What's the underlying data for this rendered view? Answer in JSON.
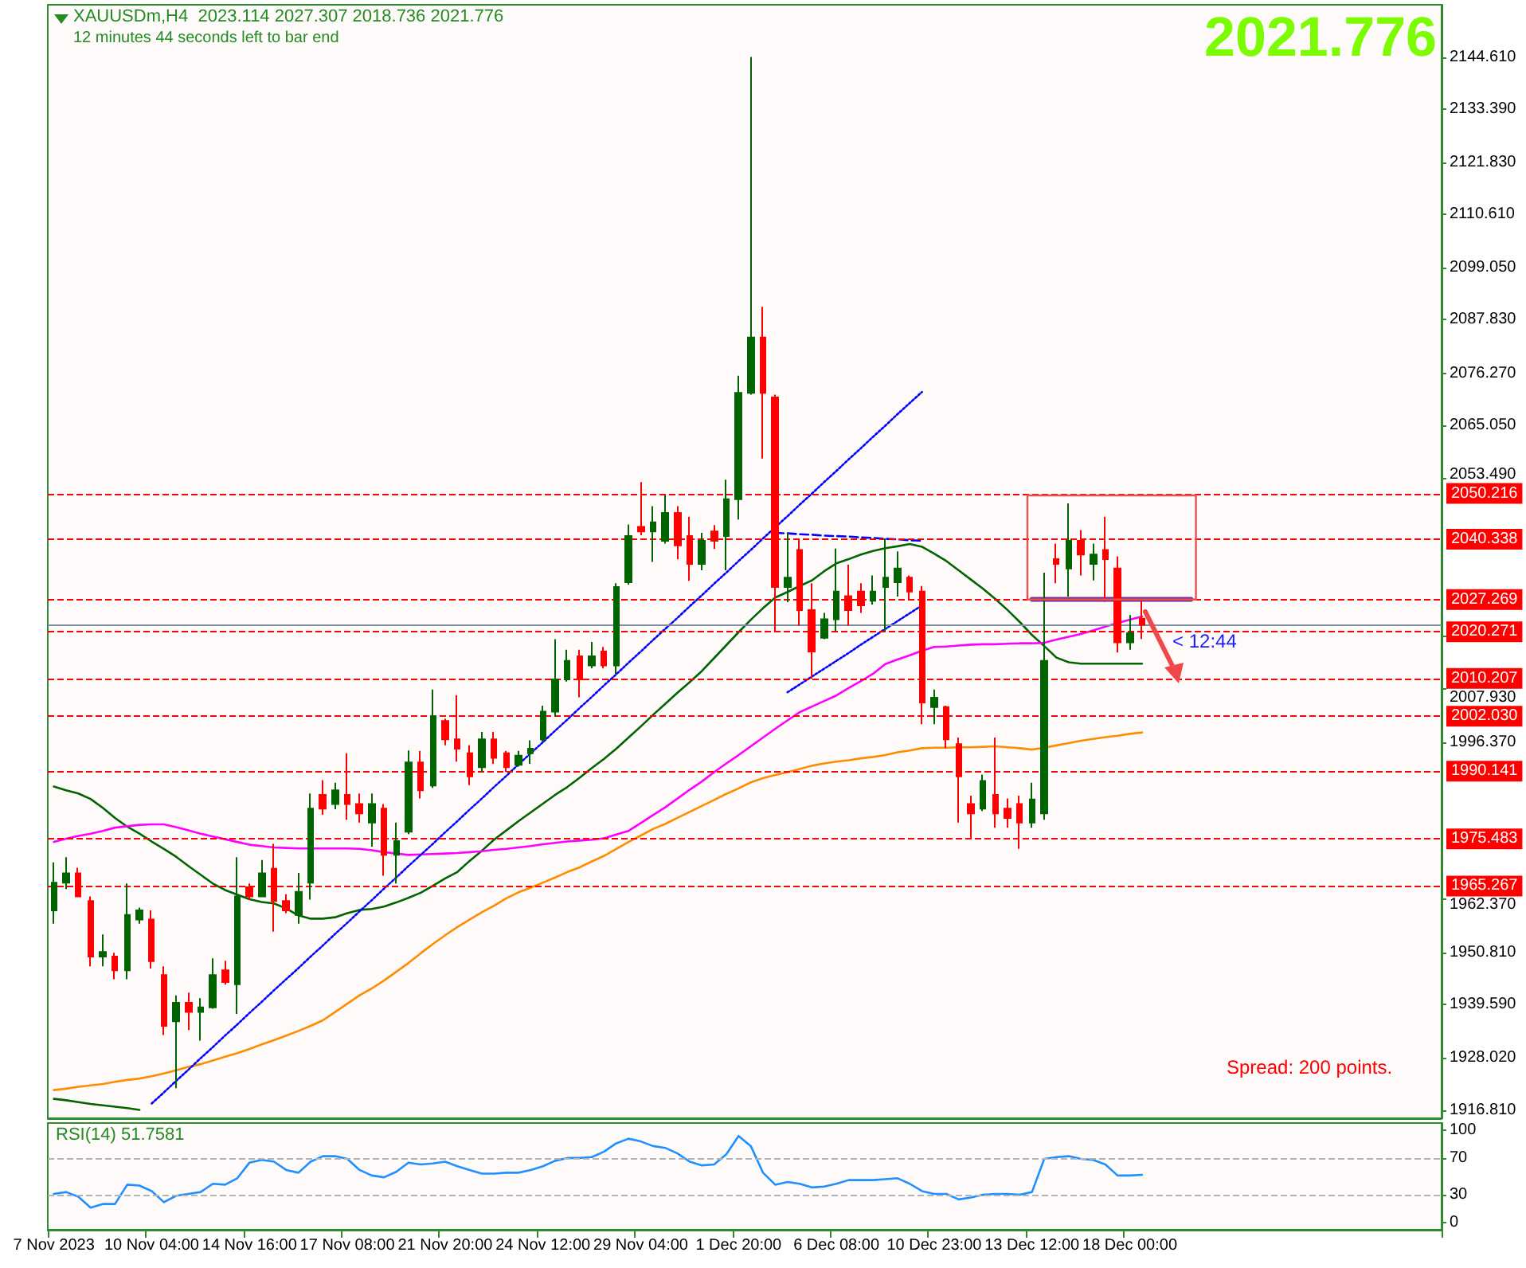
{
  "chart_data": [
    {
      "type": "candlestick",
      "title": "XAUUSDm,H4  2023.114 2027.307 2018.736 2021.776",
      "subtitle": "12 minutes 44 seconds left to bar end",
      "categories": [
        null,
        null,
        null,
        null,
        null,
        null,
        null,
        null,
        null,
        null,
        null,
        null,
        null,
        null,
        null,
        null,
        null,
        null,
        null,
        null,
        null,
        null,
        null,
        null,
        null,
        null,
        null,
        null,
        null,
        null,
        null,
        null,
        null,
        null,
        null,
        null,
        null,
        null,
        null,
        null,
        null,
        null,
        null,
        null,
        null,
        null,
        null,
        null,
        null,
        null,
        null,
        null,
        null,
        null,
        null,
        null,
        null,
        null,
        null,
        null,
        null,
        null,
        null,
        null,
        null,
        null,
        null,
        null,
        null,
        null,
        null,
        null,
        null,
        null,
        null,
        null,
        null,
        null,
        null,
        null,
        null,
        null,
        null,
        null,
        null,
        null,
        null,
        null,
        null,
        null,
        null,
        null,
        null,
        null,
        null,
        null,
        null,
        null,
        null,
        null,
        null,
        null,
        null,
        null,
        null,
        null,
        null,
        null,
        null,
        null,
        null,
        null,
        null,
        null
      ],
      "ohlc": [
        [
          1960,
          1970.4,
          1957.1,
          1966
        ],
        [
          1966,
          1971.5,
          1964.6,
          1968
        ],
        [
          1968,
          1969.2,
          1962.9,
          1963
        ],
        [
          1962,
          1963,
          1947.9,
          1950
        ],
        [
          1950,
          1954.8,
          1947.9,
          1951
        ],
        [
          1950,
          1950.8,
          1945.1,
          1947
        ],
        [
          1947,
          1965.8,
          1945.1,
          1959
        ],
        [
          1958,
          1960.6,
          1957.1,
          1960
        ],
        [
          1958,
          1960,
          1947.4,
          1949
        ],
        [
          1946,
          1947.9,
          1933,
          1935
        ],
        [
          1936,
          1941.6,
          1921.5,
          1940
        ],
        [
          1940,
          1942.2,
          1934.1,
          1938
        ],
        [
          1938,
          1941,
          1931.8,
          1939
        ],
        [
          1939,
          1949.6,
          1938.7,
          1946
        ],
        [
          1947,
          1949.1,
          1943.9,
          1944.5
        ],
        [
          1944,
          1971.5,
          1937.6,
          1963
        ],
        [
          1965,
          1965.8,
          1962.3,
          1963
        ],
        [
          1963,
          1970.9,
          1962.9,
          1968
        ],
        [
          1969,
          1974.4,
          1955.4,
          1962
        ],
        [
          1962,
          1963.5,
          1959.4,
          1960
        ],
        [
          1959,
          1968.1,
          1957.1,
          1964
        ],
        [
          1966,
          1985.3,
          1962.3,
          1982
        ],
        [
          1985,
          1988.2,
          1980.7,
          1982
        ],
        [
          1983,
          1987.6,
          1981.9,
          1986
        ],
        [
          1985,
          1994,
          1979.6,
          1983
        ],
        [
          1983,
          1985.3,
          1979,
          1981
        ],
        [
          1979,
          1985.3,
          1973.8,
          1983
        ],
        [
          1982,
          1983,
          1967.5,
          1972
        ],
        [
          1972,
          1979,
          1965.8,
          1975
        ],
        [
          1977,
          1994.6,
          1976.5,
          1992
        ],
        [
          1992,
          1994.5,
          1984.2,
          1986
        ],
        [
          1987,
          2007.8,
          1986.5,
          2002
        ],
        [
          2001,
          2001.5,
          1995.7,
          1997
        ],
        [
          1997,
          2006.6,
          1992.2,
          1995
        ],
        [
          1994,
          1995.7,
          1987.1,
          1989
        ],
        [
          1991,
          1998.6,
          1990,
          1997
        ],
        [
          1997,
          1998.6,
          1991.7,
          1993
        ],
        [
          1994,
          1994.5,
          1990,
          1991
        ],
        [
          1991.5,
          1994.5,
          1991.1,
          1993.5
        ],
        [
          1994,
          1996.8,
          1991.7,
          1995
        ],
        [
          1997,
          2004.3,
          1996.5,
          2003
        ],
        [
          2003,
          2018.7,
          2002,
          2010
        ],
        [
          2010,
          2016.4,
          2009.5,
          2014
        ],
        [
          2015,
          2016.4,
          2006.1,
          2010
        ],
        [
          2013,
          2018.1,
          2012.4,
          2015
        ],
        [
          2016,
          2017,
          2012.4,
          2013
        ],
        [
          2013,
          2030.8,
          2011.2,
          2030
        ],
        [
          2031,
          2043.5,
          2030.5,
          2041
        ],
        [
          2043,
          2052.7,
          2041.2,
          2042
        ],
        [
          2042,
          2047.5,
          2035.4,
          2044
        ],
        [
          2040,
          2049.8,
          2039.4,
          2046
        ],
        [
          2046,
          2047.5,
          2036,
          2039
        ],
        [
          2041,
          2045.2,
          2031.3,
          2035
        ],
        [
          2035,
          2041.7,
          2033.6,
          2040
        ],
        [
          2042,
          2043.4,
          2038.2,
          2040
        ],
        [
          2041,
          2053.2,
          2033.6,
          2049
        ],
        [
          2049,
          2075.7,
          2044.6,
          2072
        ],
        [
          2072,
          2144.7,
          2071.6,
          2084
        ],
        [
          2084,
          2090.6,
          2057.8,
          2072
        ],
        [
          2071,
          2071.6,
          2020.4,
          2030
        ],
        [
          2030,
          2041.7,
          2026.7,
          2032
        ],
        [
          2038,
          2040.5,
          2021.6,
          2025
        ],
        [
          2025,
          2030.8,
          2010.1,
          2016
        ],
        [
          2019,
          2024.4,
          2018.7,
          2023
        ],
        [
          2023,
          2038.3,
          2020.4,
          2029
        ],
        [
          2028,
          2034.8,
          2021.6,
          2025
        ],
        [
          2029,
          2030.8,
          2024.4,
          2026
        ],
        [
          2027,
          2032.5,
          2026.2,
          2029
        ],
        [
          2030,
          2040.5,
          2020.4,
          2032
        ],
        [
          2031,
          2037.7,
          2027.9,
          2034
        ],
        [
          2032,
          2032.5,
          2027.3,
          2029
        ],
        [
          2029,
          2030.2,
          2000.3,
          2005
        ],
        [
          2004,
          2007.8,
          2000.3,
          2006
        ],
        [
          2004,
          2004.3,
          1995.1,
          1997
        ],
        [
          1996,
          1997.4,
          1979,
          1989
        ],
        [
          1983,
          1984.8,
          1975.6,
          1981
        ],
        [
          1982,
          1989.4,
          1981.5,
          1988
        ],
        [
          1985,
          1997.4,
          1977.9,
          1981
        ],
        [
          1982,
          1984.2,
          1977.9,
          1980
        ],
        [
          1983,
          1984.8,
          1973.3,
          1979
        ],
        [
          1979,
          1987.6,
          1977.9,
          1984
        ],
        [
          1981,
          2033.1,
          1979.6,
          2014
        ],
        [
          2036,
          2039.4,
          2030.8,
          2035
        ],
        [
          2034,
          2048.1,
          2027.9,
          2040
        ],
        [
          2040,
          2042.3,
          2032.5,
          2037
        ],
        [
          2035,
          2039.4,
          2031.4,
          2037
        ],
        [
          2038,
          2045.2,
          2026.8,
          2036
        ],
        [
          2034,
          2036.6,
          2015.8,
          2018
        ],
        [
          2018,
          2023.9,
          2016.4,
          2020
        ],
        [
          2023.114,
          2027.307,
          2018.736,
          2021.776
        ],
        null,
        null,
        null,
        null,
        null,
        null,
        null,
        null,
        null,
        null,
        null,
        null,
        null,
        null,
        null,
        null,
        null,
        null,
        null,
        null,
        null,
        null,
        null,
        null
      ],
      "colors": [
        "#006400",
        "#006400",
        "#ff0000",
        "#ff0000",
        "#006400",
        "#ff0000",
        "#006400",
        "#006400",
        "#ff0000",
        "#ff0000",
        "#006400",
        "#ff0000",
        "#006400",
        "#006400",
        "#ff0000",
        "#006400",
        "#ff0000",
        "#006400",
        "#ff0000",
        "#ff0000",
        "#006400",
        "#006400",
        "#ff0000",
        "#006400",
        "#ff0000",
        "#ff0000",
        "#006400",
        "#ff0000",
        "#006400",
        "#006400",
        "#ff0000",
        "#006400",
        "#ff0000",
        "#ff0000",
        "#ff0000",
        "#006400",
        "#ff0000",
        "#ff0000",
        "#006400",
        "#006400",
        "#006400",
        "#006400",
        "#006400",
        "#ff0000",
        "#006400",
        "#ff0000",
        "#006400",
        "#006400",
        "#ff0000",
        "#006400",
        "#006400",
        "#ff0000",
        "#ff0000",
        "#006400",
        "#ff0000",
        "#006400",
        "#006400",
        "#006400",
        "#ff0000",
        "#ff0000",
        "#006400",
        "#ff0000",
        "#ff0000",
        "#006400",
        "#006400",
        "#ff0000",
        "#ff0000",
        "#006400",
        "#006400",
        "#006400",
        "#ff0000",
        "#ff0000",
        "#006400",
        "#ff0000",
        "#ff0000",
        "#ff0000",
        "#006400",
        "#ff0000",
        "#ff0000",
        "#ff0000",
        "#006400",
        "#006400",
        "#ff0000",
        "#006400",
        "#ff0000",
        "#006400",
        "#ff0000",
        "#ff0000",
        "#006400",
        "#ff0000",
        null,
        null,
        null,
        null,
        null,
        null,
        null,
        null,
        null,
        null,
        null,
        null,
        null,
        null,
        null,
        null,
        null,
        null,
        null,
        null,
        null,
        null,
        null,
        null
      ],
      "series": [
        {
          "type": "line",
          "color": "#006400",
          "values": [
            1986.8,
            1986.0,
            1985.3,
            1984.1,
            1982.2,
            1980.0,
            1978.1,
            1976.6,
            1974.9,
            1973.3,
            1971.6,
            1969.6,
            1967.7,
            1965.8,
            1964.4,
            1963.4,
            1962.4,
            1961.8,
            1961.5,
            1960.4,
            1958.9,
            1958.2,
            1958.2,
            1958.5,
            1959.4,
            1960.1,
            1960.3,
            1960.8,
            1961.7,
            1962.7,
            1963.8,
            1965.3,
            1966.9,
            1968.3,
            1970.7,
            1972.9,
            1975.3,
            1977.3,
            1979.3,
            1981.2,
            1983.1,
            1985.0,
            1986.7,
            1988.7,
            1990.8,
            1992.8,
            1995.0,
            1997.4,
            1999.8,
            2002.3,
            2004.7,
            2007.1,
            2009.4,
            2011.8,
            2014.6,
            2017.4,
            2020.2,
            2022.9,
            2025.4,
            2027.7,
            2028.9,
            2030.2,
            2031.4,
            2033.4,
            2035.1,
            2036.0,
            2037.0,
            2037.8,
            2038.4,
            2038.8,
            2039.3,
            2038.7,
            2037.2,
            2035.6,
            2033.6,
            2031.6,
            2029.6,
            2027.4,
            2025.0,
            2022.4,
            2019.6,
            2017.2,
            2014.7,
            2013.7,
            2013.4,
            2013.4,
            2013.4,
            2013.4,
            2013.4,
            2013.4,
            null,
            null,
            null,
            null,
            null,
            null,
            null,
            null,
            null,
            null,
            null,
            null,
            null,
            null,
            null,
            null,
            null,
            null,
            null,
            null,
            null,
            null,
            null,
            null
          ]
        },
        {
          "type": "line",
          "color": "#ff00ff",
          "values": [
            1974.8,
            1975.5,
            1976.1,
            1976.6,
            1977.2,
            1977.9,
            1978.2,
            1978.5,
            1978.6,
            1978.6,
            1978.0,
            1977.3,
            1976.6,
            1976.0,
            1975.4,
            1974.8,
            1974.2,
            1973.9,
            1973.6,
            1973.5,
            1973.4,
            1973.4,
            1973.4,
            1973.4,
            1973.4,
            1973.3,
            1973.0,
            1972.6,
            1972.3,
            1972.0,
            1972.1,
            1972.2,
            1972.3,
            1972.4,
            1972.6,
            1972.8,
            1973.1,
            1973.3,
            1973.6,
            1973.9,
            1974.3,
            1974.6,
            1974.9,
            1975.1,
            1975.3,
            1975.6,
            1976.4,
            1977.2,
            1978.9,
            1980.6,
            1982.3,
            1984.2,
            1986.1,
            1987.9,
            1989.9,
            1991.8,
            1993.6,
            1995.5,
            1997.4,
            1999.3,
            2001.1,
            2002.9,
            2004.1,
            2005.3,
            2006.5,
            2008.1,
            2009.6,
            2011.2,
            2013.3,
            2014.3,
            2015.2,
            2016.2,
            2017.0,
            2017.1,
            2017.3,
            2017.5,
            2017.6,
            2017.6,
            2017.7,
            2017.8,
            2017.8,
            2017.9,
            2018.6,
            2019.2,
            2019.8,
            2020.6,
            2021.4,
            2022.2,
            2022.9,
            2023.6,
            null,
            null,
            null,
            null,
            null,
            null,
            null,
            null,
            null,
            null,
            null,
            null,
            null,
            null,
            null,
            null,
            null,
            null,
            null,
            null,
            null,
            null,
            null,
            null
          ]
        },
        {
          "type": "line",
          "color": "#ff8c00",
          "values": [
            1921.1,
            1921.4,
            1921.8,
            1922.1,
            1922.4,
            1922.9,
            1923.3,
            1923.6,
            1924.1,
            1924.7,
            1925.4,
            1926.1,
            1926.7,
            1927.5,
            1928.3,
            1929.1,
            1930.0,
            1931.0,
            1931.9,
            1932.9,
            1933.9,
            1935.0,
            1936.2,
            1938.0,
            1939.8,
            1941.6,
            1943.1,
            1944.8,
            1946.7,
            1948.6,
            1950.7,
            1952.7,
            1954.6,
            1956.4,
            1958.0,
            1959.6,
            1961.0,
            1962.6,
            1963.9,
            1964.9,
            1966.0,
            1967.1,
            1968.3,
            1969.3,
            1970.6,
            1971.8,
            1973.3,
            1974.8,
            1976.2,
            1977.6,
            1978.7,
            1980.0,
            1981.3,
            1982.6,
            1983.9,
            1985.2,
            1986.4,
            1987.7,
            1988.6,
            1989.3,
            1989.9,
            1990.6,
            1991.3,
            1991.8,
            1992.2,
            1992.5,
            1992.9,
            1993.2,
            1993.6,
            1994.2,
            1994.6,
            1995.1,
            1995.2,
            1995.2,
            1995.3,
            1995.3,
            1995.4,
            1995.5,
            1995.3,
            1995.1,
            1994.8,
            1995.2,
            1995.7,
            1996.2,
            1996.7,
            1997.1,
            1997.5,
            1997.8,
            1998.2,
            1998.5,
            null,
            null,
            null,
            null,
            null,
            null,
            null,
            null,
            null,
            null,
            null,
            null,
            null,
            null,
            null,
            null,
            null,
            null,
            null,
            null,
            null,
            null,
            null,
            null
          ]
        },
        {
          "type": "line",
          "color": "#006400",
          "values": [
            1919.2,
            1918.9,
            1918.5,
            1918.1,
            1917.8,
            1917.5,
            1917.2,
            1916.8,
            null,
            null,
            null,
            null,
            null,
            null,
            null,
            null,
            null,
            null,
            null,
            null,
            null,
            null,
            null,
            null,
            null,
            null,
            null,
            null,
            null,
            null,
            null,
            null,
            null,
            null,
            null,
            null,
            null,
            null,
            null,
            null,
            null,
            null,
            null,
            null,
            null,
            null,
            null,
            null,
            null,
            null,
            null,
            null,
            null,
            null,
            null,
            null,
            null,
            null,
            null,
            null,
            null,
            null,
            null,
            null,
            null,
            null,
            null,
            null,
            null,
            null,
            null,
            null,
            null,
            null,
            null,
            null,
            null,
            null,
            null,
            null,
            null,
            null,
            null,
            null,
            null,
            null,
            null,
            null,
            null,
            null,
            null,
            null,
            null,
            null,
            null,
            null,
            null,
            null,
            null,
            null,
            null,
            null,
            null,
            null,
            null,
            null,
            null,
            null,
            null,
            null,
            null,
            null,
            null,
            null
          ]
        },
        {
          "type": "line",
          "color": "#0000ff",
          "line_style": "dotted",
          "values": [
            null,
            null,
            null,
            null,
            null,
            null,
            null,
            null,
            1918.2,
            1920.6,
            1923.1,
            1925.5,
            1928.0,
            1930.4,
            1932.9,
            1935.3,
            1937.8,
            1940.2,
            1942.7,
            1945.1,
            1947.5,
            1950.0,
            1952.4,
            1954.9,
            1957.3,
            1959.8,
            1962.2,
            1964.7,
            1967.1,
            1969.6,
            1972.0,
            1974.4,
            1976.9,
            1979.3,
            1981.8,
            1984.2,
            1986.7,
            1989.1,
            1991.6,
            1994.0,
            1996.4,
            1998.9,
            2001.3,
            2003.8,
            2006.2,
            2008.7,
            2011.1,
            2013.6,
            2016.0,
            2018.5,
            2020.9,
            2023.3,
            2025.8,
            2028.2,
            2030.7,
            2033.1,
            2035.6,
            2038.0,
            2040.5,
            2042.9,
            2045.3,
            2047.8,
            2050.2,
            2052.7,
            2055.1,
            2057.6,
            2060.0,
            2062.5,
            2064.9,
            2067.4,
            2069.8,
            2072.2,
            null,
            null,
            null,
            null,
            null,
            null,
            null,
            null,
            null,
            null,
            null,
            null,
            null,
            null,
            null,
            null,
            null,
            null,
            null,
            null,
            null,
            null,
            null,
            null,
            null,
            null,
            null,
            null,
            null,
            null,
            null,
            null,
            null,
            null,
            null,
            null,
            null,
            null,
            null,
            null,
            null,
            null
          ]
        },
        {
          "type": "line",
          "color": "#0000ff",
          "line_style": "dotted",
          "values": [
            null,
            null,
            null,
            null,
            null,
            null,
            null,
            null,
            null,
            null,
            null,
            null,
            null,
            null,
            null,
            null,
            null,
            null,
            null,
            null,
            null,
            null,
            null,
            null,
            null,
            null,
            null,
            null,
            null,
            null,
            null,
            null,
            null,
            null,
            null,
            null,
            null,
            null,
            null,
            null,
            null,
            null,
            null,
            null,
            null,
            null,
            null,
            null,
            null,
            null,
            null,
            null,
            null,
            null,
            null,
            null,
            null,
            null,
            null,
            null,
            2007.2,
            2008.9,
            2010.6,
            2012.3,
            2014.0,
            2015.7,
            2017.5,
            2019.2,
            2020.9,
            2022.6,
            2024.3,
            2026.0,
            null,
            null,
            null,
            null,
            null,
            null,
            null,
            null,
            null,
            null,
            null,
            null,
            null,
            null,
            null,
            null,
            null,
            null,
            null,
            null,
            null,
            null,
            null,
            null,
            null,
            null,
            null,
            null,
            null,
            null,
            null,
            null,
            null,
            null,
            null,
            null,
            null,
            null,
            null,
            null,
            null,
            null
          ]
        },
        {
          "type": "line",
          "color": "#0000ff",
          "line_style": "dashed",
          "values": [
            null,
            null,
            null,
            null,
            null,
            null,
            null,
            null,
            null,
            null,
            null,
            null,
            null,
            null,
            null,
            null,
            null,
            null,
            null,
            null,
            null,
            null,
            null,
            null,
            null,
            null,
            null,
            null,
            null,
            null,
            null,
            null,
            null,
            null,
            null,
            null,
            null,
            null,
            null,
            null,
            null,
            null,
            null,
            null,
            null,
            null,
            null,
            null,
            null,
            null,
            null,
            null,
            null,
            null,
            null,
            null,
            null,
            null,
            null,
            2041.7,
            2041.6,
            2041.4,
            2041.3,
            2041.1,
            2041.0,
            2040.9,
            2040.7,
            2040.6,
            2040.4,
            2040.3,
            2040.1,
            2040.0,
            null,
            null,
            null,
            null,
            null,
            null,
            null,
            null,
            null,
            null,
            null,
            null,
            null,
            null,
            null,
            null,
            null,
            null,
            null,
            null,
            null,
            null,
            null,
            null,
            null,
            null,
            null,
            null,
            null,
            null,
            null,
            null,
            null,
            null,
            null,
            null,
            null,
            null,
            null,
            null,
            null,
            null
          ]
        },
        {
          "type": "line",
          "color": "#7030a0",
          "values": [
            null,
            null,
            null,
            null,
            null,
            null,
            null,
            null,
            null,
            null,
            null,
            null,
            null,
            null,
            null,
            null,
            null,
            null,
            null,
            null,
            null,
            null,
            null,
            null,
            null,
            null,
            null,
            null,
            null,
            null,
            null,
            null,
            null,
            null,
            null,
            null,
            null,
            null,
            null,
            null,
            null,
            null,
            null,
            null,
            null,
            null,
            null,
            null,
            null,
            null,
            null,
            null,
            null,
            null,
            null,
            null,
            null,
            null,
            null,
            null,
            null,
            null,
            null,
            null,
            null,
            null,
            null,
            null,
            null,
            null,
            null,
            null,
            null,
            null,
            null,
            null,
            null,
            null,
            null,
            null,
            2027.3,
            2027.3,
            2027.3,
            2027.3,
            2027.3,
            2027.3,
            2027.3,
            2027.3,
            2027.3,
            2027.3,
            2027.3,
            2027.3,
            2027.3,
            2027.3,
            null,
            null,
            null,
            null,
            null,
            null,
            null,
            null,
            null,
            null,
            null,
            null,
            null,
            null,
            null,
            null,
            null,
            null,
            null,
            null
          ]
        }
      ],
      "ylim": [
        1915,
        2156
      ],
      "yticks": [
        {
          "value": 1916.81,
          "label": "1916.810"
        },
        {
          "value": 1928.02,
          "label": "1928.020"
        },
        {
          "value": 1939.59,
          "label": "1939.590"
        },
        {
          "value": 1950.81,
          "label": "1950.810"
        },
        {
          "value": 1962.37,
          "label": "1962.370"
        },
        {
          "value": 1996.37,
          "label": "1996.370"
        },
        {
          "value": 2007.93,
          "label": "2007.930"
        },
        {
          "value": 2019.49,
          "label": null
        },
        {
          "value": 2053.49,
          "label": "2053.490"
        },
        {
          "value": 2065.05,
          "label": "2065.050"
        },
        {
          "value": 2076.27,
          "label": "2076.270"
        },
        {
          "value": 2087.83,
          "label": "2087.830"
        },
        {
          "value": 2099.05,
          "label": "2099.050"
        },
        {
          "value": 2110.61,
          "label": "2110.610"
        },
        {
          "value": 2121.83,
          "label": "2121.830"
        },
        {
          "value": 2133.39,
          "label": "2133.390"
        },
        {
          "value": 2144.61,
          "label": "2144.610"
        }
      ],
      "ref_lines": [
        {
          "axis": "y",
          "value": 2050.216,
          "label": "2050.216",
          "color": "#ff0000",
          "line_style": "dashed"
        },
        {
          "axis": "y",
          "value": 2040.338,
          "label": "2040.338",
          "color": "#ff0000",
          "line_style": "dashed"
        },
        {
          "axis": "y",
          "value": 2027.269,
          "label": "2027.269",
          "color": "#ff0000",
          "line_style": "dashed"
        },
        {
          "axis": "y",
          "value": 2021.776,
          "color": "#8090a0",
          "line_style": "solid"
        },
        {
          "axis": "y",
          "value": 2020.271,
          "label": "2020.271",
          "color": "#ff0000",
          "line_style": "dashed"
        },
        {
          "axis": "y",
          "value": 2010.207,
          "label": "2010.207",
          "color": "#ff0000",
          "line_style": "dashed"
        },
        {
          "axis": "y",
          "value": 2002.03,
          "label": "2002.030",
          "color": "#ff0000",
          "line_style": "dashed"
        },
        {
          "axis": "y",
          "value": 1990.141,
          "label": "1990.141",
          "color": "#ff0000",
          "line_style": "dashed"
        },
        {
          "axis": "y",
          "value": 1975.483,
          "label": "1975.483",
          "color": "#ff0000",
          "line_style": "dashed"
        },
        {
          "axis": "y",
          "value": 1965.267,
          "label": "1965.267",
          "color": "#ff0000",
          "line_style": "dashed"
        }
      ],
      "annotations": [
        {
          "text": "< 12:44",
          "y": 2021.776
        },
        "Spread: 200 points.",
        "2021.776"
      ],
      "tick_labels": "y"
    },
    {
      "type": "line",
      "title": "RSI(14) 51.7581",
      "categories": [
        "7 Nov 2023",
        null,
        null,
        null,
        null,
        null,
        null,
        null,
        "10 Nov 04:00",
        null,
        null,
        null,
        null,
        null,
        null,
        null,
        "14 Nov 16:00",
        null,
        null,
        null,
        null,
        null,
        null,
        null,
        "17 Nov 08:00",
        null,
        null,
        null,
        null,
        null,
        null,
        null,
        "21 Nov 20:00",
        null,
        null,
        null,
        null,
        null,
        null,
        null,
        "24 Nov 12:00",
        null,
        null,
        null,
        null,
        null,
        null,
        null,
        "29 Nov 04:00",
        null,
        null,
        null,
        null,
        null,
        null,
        null,
        "1 Dec 20:00",
        null,
        null,
        null,
        null,
        null,
        null,
        null,
        "6 Dec 08:00",
        null,
        null,
        null,
        null,
        null,
        null,
        null,
        "10 Dec 23:00",
        null,
        null,
        null,
        null,
        null,
        null,
        null,
        "13 Dec 12:00",
        null,
        null,
        null,
        null,
        null,
        null,
        null,
        "18 Dec 00:00",
        null,
        null,
        null,
        null,
        null,
        null,
        null,
        null,
        null,
        null,
        null,
        null,
        null,
        null,
        null,
        null,
        null,
        null,
        null,
        null,
        null,
        null,
        null,
        null,
        null
      ],
      "series": [
        {
          "color": "#1e90ff",
          "values": [
            31,
            33,
            28,
            16,
            20,
            20,
            41,
            40,
            34,
            22,
            29,
            31,
            33,
            42,
            41,
            48,
            65,
            68,
            66,
            57,
            54,
            66,
            72,
            72,
            69,
            57,
            51,
            49,
            55,
            65,
            63,
            64,
            66,
            61,
            57,
            53,
            53,
            54,
            54,
            57,
            61,
            67,
            70,
            70,
            71,
            77,
            86,
            91,
            88,
            83,
            81,
            75,
            66,
            62,
            63,
            74,
            94,
            83,
            54,
            41,
            44,
            42,
            38,
            39,
            42,
            46,
            46,
            46,
            47,
            48,
            42,
            34,
            31,
            31,
            25,
            27,
            30,
            31,
            31,
            30,
            33,
            69,
            71,
            72,
            69,
            68,
            63,
            51,
            51,
            51.7581,
            null,
            null,
            null,
            null,
            null,
            null,
            null,
            null,
            null,
            null,
            null,
            null,
            null,
            null,
            null,
            null,
            null,
            null,
            null,
            null,
            null,
            null,
            null,
            null
          ]
        }
      ],
      "ylim": [
        -8,
        108
      ],
      "yticks": [
        0,
        30,
        70,
        100
      ],
      "ref_lines": [
        {
          "axis": "y",
          "value": 70,
          "color": "#b4b4b4",
          "line_style": "dashed"
        },
        {
          "axis": "y",
          "value": 30,
          "color": "#b4b4b4",
          "line_style": "dashed"
        }
      ]
    }
  ]
}
